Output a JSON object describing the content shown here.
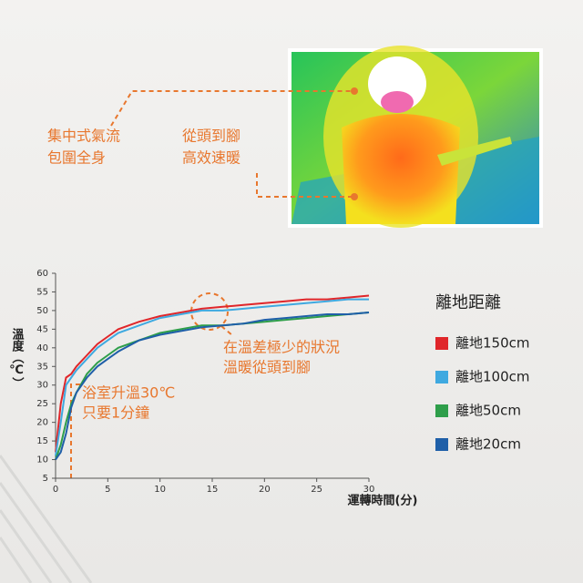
{
  "callouts": {
    "airflow": [
      "集中式氣流",
      "包圍全身"
    ],
    "warmth": [
      "從頭到腳",
      "高效速暖"
    ]
  },
  "chart_data": {
    "type": "line",
    "y_label": "溫度（℃）",
    "x_label": "運轉時間(分)",
    "legend_title": "離地距離",
    "annotations": {
      "even": [
        "在溫差極少的狀況",
        "溫暖從頭到腳"
      ],
      "fast": [
        "浴室升溫30℃",
        "只要1分鐘"
      ]
    },
    "x": [
      0,
      0.5,
      1,
      1.5,
      2,
      3,
      4,
      5,
      6,
      8,
      10,
      12,
      14,
      16,
      18,
      20,
      22,
      24,
      26,
      28,
      30
    ],
    "series": [
      {
        "name": "離地150cm",
        "color": "#e0262a",
        "values": [
          12,
          25,
          32,
          33,
          35,
          38,
          41,
          43,
          45,
          47,
          48.5,
          49.5,
          50.5,
          51,
          51.5,
          52,
          52.5,
          53,
          53,
          53.5,
          54
        ]
      },
      {
        "name": "離地100cm",
        "color": "#3fa9e0",
        "values": [
          11,
          20,
          30,
          32,
          34,
          37,
          40,
          42,
          44,
          46,
          48,
          49,
          50,
          50,
          50.5,
          51,
          51.5,
          52,
          52.5,
          53,
          53
        ]
      },
      {
        "name": "離地50cm",
        "color": "#2e9e4a",
        "values": [
          10,
          14,
          20,
          25,
          28,
          33,
          36,
          38,
          40,
          42,
          44,
          45,
          46,
          46,
          46.5,
          47,
          47.5,
          48,
          48.5,
          49,
          49.5
        ]
      },
      {
        "name": "離地20cm",
        "color": "#1f5fa8",
        "values": [
          10,
          12,
          17,
          24,
          28,
          32,
          35,
          37,
          39,
          42,
          43.5,
          44.5,
          45.5,
          46,
          46.5,
          47.5,
          48,
          48.5,
          49,
          49,
          49.5
        ]
      }
    ],
    "xlim": [
      0,
      30
    ],
    "xticks": [
      0,
      5,
      10,
      15,
      20,
      25,
      30
    ],
    "ylim": [
      5,
      60
    ],
    "yticks": [
      5,
      10,
      15,
      20,
      25,
      30,
      35,
      40,
      45,
      50,
      55,
      60
    ]
  }
}
